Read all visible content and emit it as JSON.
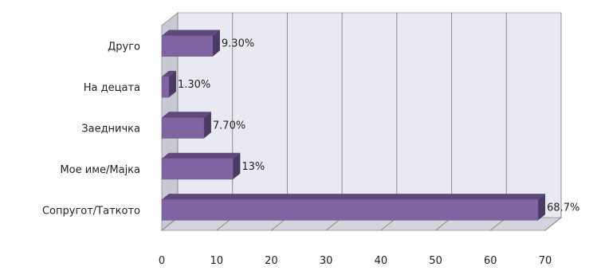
{
  "chart_data": {
    "type": "bar",
    "orientation": "horizontal",
    "style": "3d",
    "categories": [
      "Друго",
      "На децата",
      "Заедничка",
      "Мое име/Мајка",
      "Сопругот/Таткото"
    ],
    "values": [
      9.3,
      1.3,
      7.7,
      13,
      68.7
    ],
    "data_labels": [
      "9.30%",
      "1.30%",
      "7.70%",
      "13%",
      "68.7%"
    ],
    "xticks": [
      "0",
      "10",
      "20",
      "30",
      "40",
      "50",
      "60",
      "70"
    ],
    "xlim": [
      0,
      70
    ],
    "title": "",
    "xlabel": "",
    "ylabel": "",
    "grid": true,
    "legend": "none",
    "colors": {
      "bar_front": "#8064a2",
      "bar_top": "#5f497a",
      "bar_side": "#4b3a63",
      "wall": "#e9e9f2",
      "floor": "#d4d4dc",
      "gridline": "#8c8c8c"
    }
  }
}
